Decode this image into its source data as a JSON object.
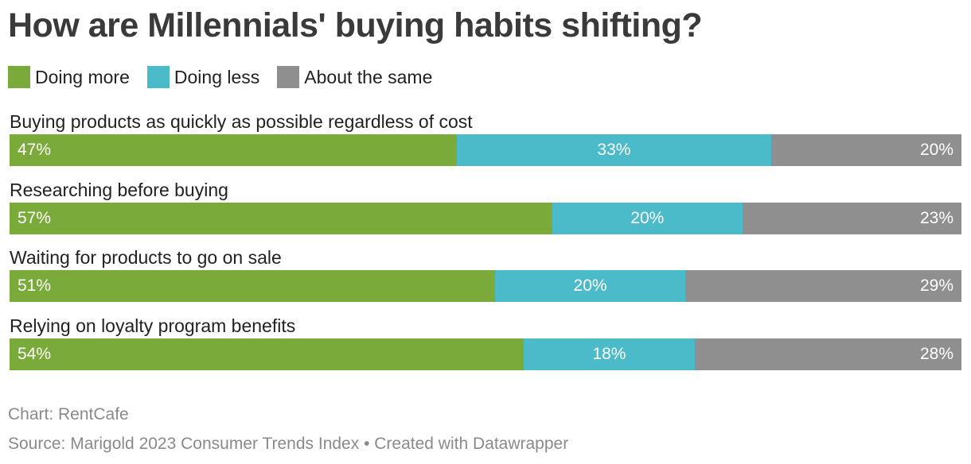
{
  "chart_data": {
    "type": "bar",
    "orientation": "horizontal",
    "stacked": true,
    "title": "How are Millennials' buying habits shifting?",
    "categories": [
      "Buying products as quickly as possible regardless of cost",
      "Researching before buying",
      "Waiting for products to go on sale",
      "Relying on loyalty program benefits"
    ],
    "series": [
      {
        "name": "Doing more",
        "values": [
          47,
          57,
          51,
          54
        ],
        "color": "#7aaa3a"
      },
      {
        "name": "Doing less",
        "values": [
          33,
          20,
          20,
          18
        ],
        "color": "#4bbac9"
      },
      {
        "name": "About the same",
        "values": [
          20,
          23,
          29,
          28
        ],
        "color": "#8f8f8f"
      }
    ],
    "value_suffix": "%",
    "xlim": [
      0,
      100
    ],
    "legend_position": "top-left",
    "grid": false
  },
  "footer": {
    "chart_credit": "Chart: RentCafe",
    "source": "Source: Marigold 2023 Consumer Trends Index • Created with Datawrapper"
  }
}
